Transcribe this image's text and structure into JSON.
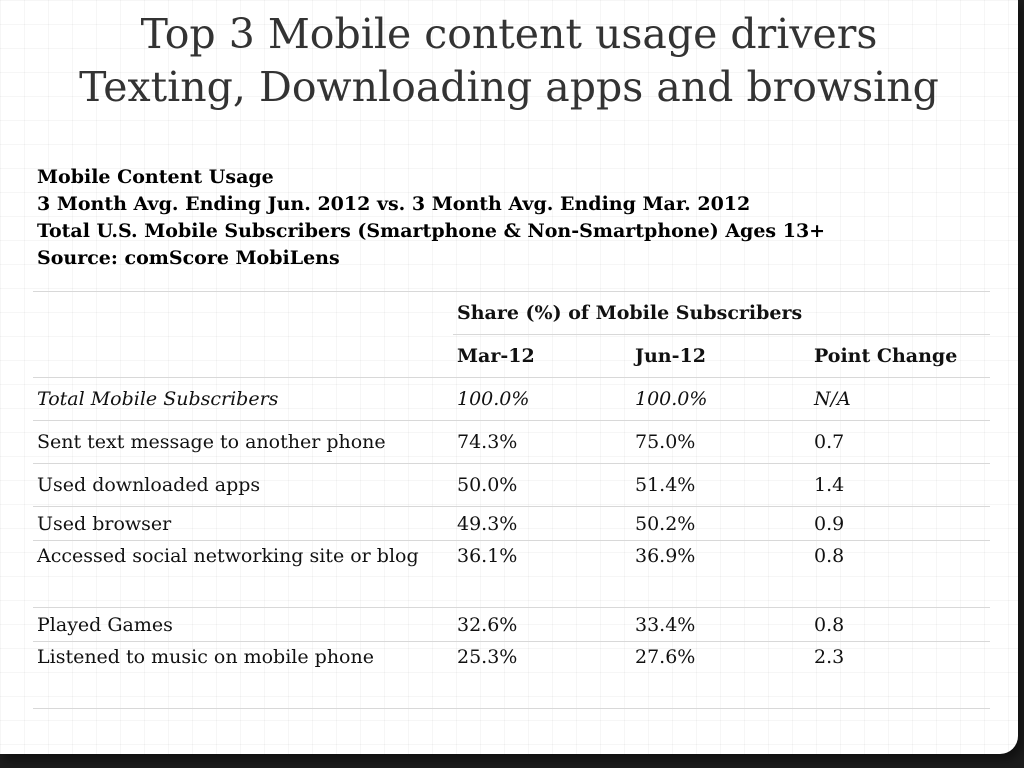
{
  "title": {
    "line1": "Top 3 Mobile content usage drivers",
    "line2": "Texting, Downloading apps and browsing"
  },
  "meta": {
    "line1": "Mobile Content Usage",
    "line2": "3 Month Avg. Ending Jun. 2012 vs. 3 Month Avg. Ending Mar. 2012",
    "line3": "Total U.S. Mobile Subscribers (Smartphone & Non-Smartphone) Ages 13+",
    "line4": "Source: comScore MobiLens"
  },
  "table": {
    "group_header": "Share (%) of Mobile Subscribers",
    "columns": [
      "Mar-12",
      "Jun-12",
      "Point Change"
    ],
    "rows": [
      {
        "label": "Total Mobile Subscribers",
        "mar": "100.0%",
        "jun": "100.0%",
        "change": "N/A"
      },
      {
        "label": "Sent text message to another phone",
        "mar": "74.3%",
        "jun": "75.0%",
        "change": "0.7"
      },
      {
        "label": "Used downloaded apps",
        "mar": "50.0%",
        "jun": "51.4%",
        "change": "1.4"
      },
      {
        "label": "Used browser",
        "mar": "49.3%",
        "jun": "50.2%",
        "change": "0.9"
      },
      {
        "label": "Accessed social networking site or blog",
        "mar": "36.1%",
        "jun": "36.9%",
        "change": "0.8"
      },
      {
        "label": "Played Games",
        "mar": "32.6%",
        "jun": "33.4%",
        "change": "0.8"
      },
      {
        "label": "Listened to music on mobile phone",
        "mar": "25.3%",
        "jun": "27.6%",
        "change": "2.3"
      }
    ]
  }
}
